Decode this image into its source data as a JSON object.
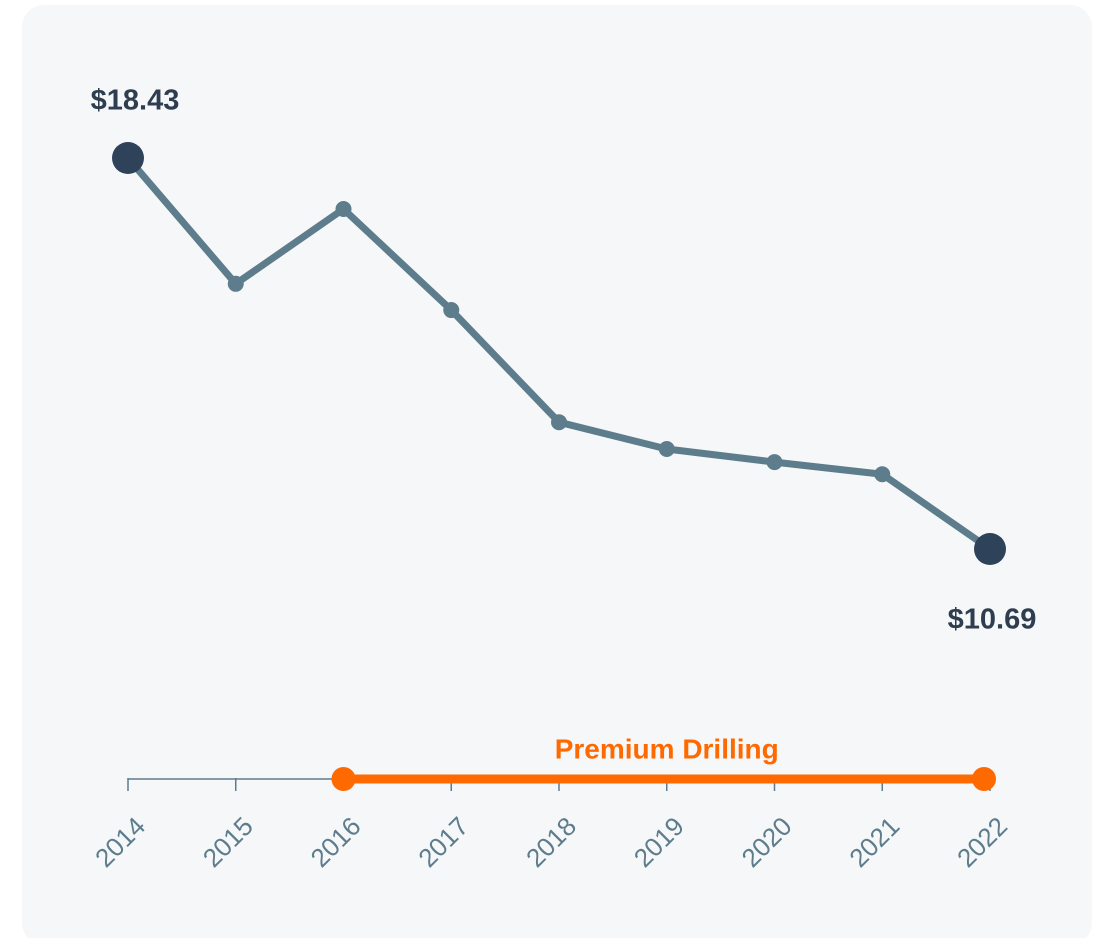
{
  "chart_data": {
    "type": "line",
    "categories": [
      "2014",
      "2015",
      "2016",
      "2017",
      "2018",
      "2019",
      "2020",
      "2021",
      "2022"
    ],
    "series": [
      {
        "color": "#5e7d8c",
        "marker_color": "#2e425a",
        "values": [
          18.43,
          15.94,
          17.42,
          15.42,
          13.2,
          12.67,
          12.41,
          12.17,
          10.69
        ],
        "value_labels": [
          "$18.43",
          null,
          null,
          null,
          null,
          null,
          null,
          null,
          "$10.69"
        ]
      }
    ],
    "highlight": {
      "text": "Premium Drilling",
      "categories": [
        "2016",
        "2022"
      ],
      "color": "#ff6a00"
    }
  }
}
